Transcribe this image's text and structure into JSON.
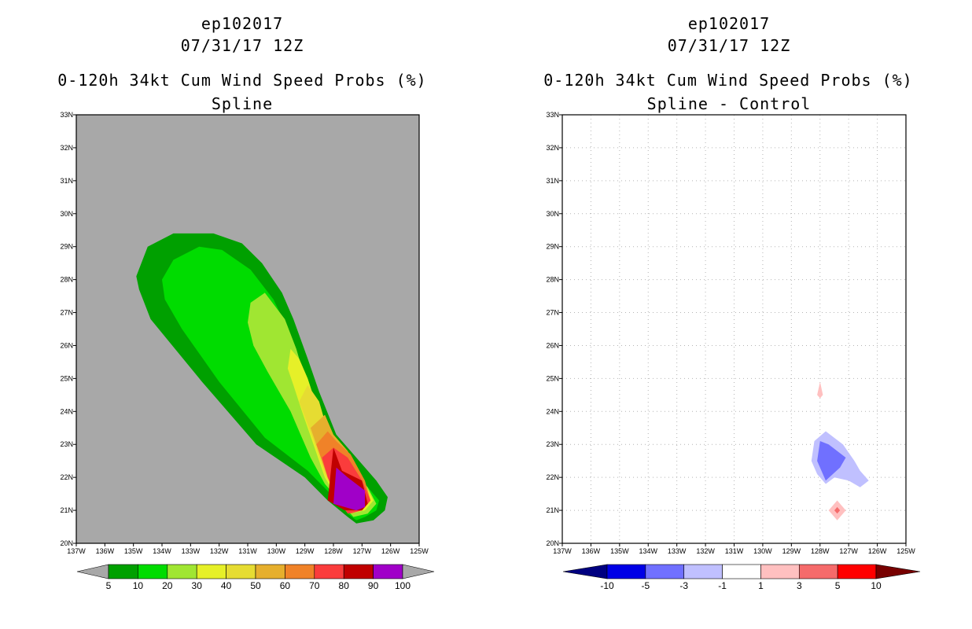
{
  "panels": [
    {
      "storm_id": "ep102017",
      "datetime": "07/31/17 12Z",
      "title": "0-120h 34kt Cum Wind Speed Probs (%)",
      "subtitle": "Spline"
    },
    {
      "storm_id": "ep102017",
      "datetime": "07/31/17 12Z",
      "title": "0-120h 34kt Cum Wind Speed Probs (%)",
      "subtitle": "Spline - Control"
    }
  ],
  "chart_data": [
    {
      "type": "heatmap",
      "title": "0-120h 34kt Cum Wind Speed Probs (%)",
      "subtitle": "Spline",
      "background_color": "#a8a8a8",
      "grid": false,
      "xlim": [
        -137,
        -125
      ],
      "ylim": [
        20,
        33
      ],
      "x_ticks": [
        -137,
        -136,
        -135,
        -134,
        -133,
        -132,
        -131,
        -130,
        -129,
        -128,
        -127,
        -126,
        -125
      ],
      "x_tick_labels": [
        "137W",
        "136W",
        "135W",
        "134W",
        "133W",
        "132W",
        "131W",
        "130W",
        "129W",
        "128W",
        "127W",
        "126W",
        "125W"
      ],
      "y_ticks": [
        20,
        21,
        22,
        23,
        24,
        25,
        26,
        27,
        28,
        29,
        30,
        31,
        32,
        33
      ],
      "y_tick_labels": [
        "20N",
        "21N",
        "22N",
        "23N",
        "24N",
        "25N",
        "26N",
        "27N",
        "28N",
        "29N",
        "30N",
        "31N",
        "32N",
        "33N"
      ],
      "contours": [
        {
          "level": 5,
          "color": "#00a000",
          "polygon": [
            [
              -130.7,
              23.0
            ],
            [
              -132.6,
              24.9
            ],
            [
              -134.4,
              26.8
            ],
            [
              -134.8,
              27.7
            ],
            [
              -134.9,
              28.1
            ],
            [
              -134.5,
              29.0
            ],
            [
              -133.6,
              29.4
            ],
            [
              -132.2,
              29.4
            ],
            [
              -131.2,
              29.1
            ],
            [
              -130.5,
              28.5
            ],
            [
              -129.8,
              27.6
            ],
            [
              -129.4,
              26.8
            ],
            [
              -128.9,
              25.6
            ],
            [
              -128.5,
              24.6
            ],
            [
              -127.9,
              23.3
            ],
            [
              -127.3,
              22.7
            ],
            [
              -126.5,
              21.9
            ],
            [
              -126.1,
              21.4
            ],
            [
              -126.2,
              21.0
            ],
            [
              -126.6,
              20.7
            ],
            [
              -127.2,
              20.6
            ],
            [
              -127.5,
              20.8
            ],
            [
              -128.2,
              21.3
            ],
            [
              -129.0,
              22.0
            ]
          ]
        },
        {
          "level": 10,
          "color": "#00dc00",
          "polygon": [
            [
              -130.4,
              23.2
            ],
            [
              -132.0,
              24.9
            ],
            [
              -133.3,
              26.5
            ],
            [
              -133.9,
              27.4
            ],
            [
              -134.0,
              28.0
            ],
            [
              -133.6,
              28.6
            ],
            [
              -132.7,
              29.0
            ],
            [
              -131.9,
              28.9
            ],
            [
              -130.9,
              28.3
            ],
            [
              -130.1,
              27.4
            ],
            [
              -129.6,
              26.5
            ],
            [
              -129.2,
              25.4
            ],
            [
              -128.8,
              24.4
            ],
            [
              -128.3,
              23.3
            ],
            [
              -127.7,
              22.6
            ],
            [
              -126.8,
              21.7
            ],
            [
              -126.4,
              21.3
            ],
            [
              -126.5,
              21.0
            ],
            [
              -126.9,
              20.8
            ],
            [
              -127.2,
              20.7
            ],
            [
              -127.5,
              20.9
            ],
            [
              -128.1,
              21.5
            ],
            [
              -128.9,
              22.2
            ]
          ]
        },
        {
          "level": 20,
          "color": "#a0e632",
          "polygon": [
            [
              -129.5,
              24.0
            ],
            [
              -130.3,
              25.2
            ],
            [
              -130.8,
              26.0
            ],
            [
              -131.0,
              26.7
            ],
            [
              -130.9,
              27.3
            ],
            [
              -130.4,
              27.6
            ],
            [
              -129.7,
              26.8
            ],
            [
              -129.3,
              25.9
            ],
            [
              -129.0,
              25.0
            ],
            [
              -128.7,
              24.1
            ],
            [
              -128.3,
              23.2
            ],
            [
              -127.6,
              22.5
            ],
            [
              -126.8,
              21.7
            ],
            [
              -126.5,
              21.2
            ],
            [
              -126.8,
              20.9
            ],
            [
              -127.3,
              20.8
            ],
            [
              -127.7,
              21.2
            ],
            [
              -128.3,
              21.8
            ],
            [
              -128.8,
              22.6
            ]
          ]
        },
        {
          "level": 30,
          "color": "#e6f028",
          "polygon": [
            [
              -129.1,
              24.0
            ],
            [
              -129.4,
              24.8
            ],
            [
              -129.6,
              25.3
            ],
            [
              -129.5,
              25.9
            ],
            [
              -129.2,
              25.6
            ],
            [
              -128.9,
              25.0
            ],
            [
              -128.6,
              24.2
            ],
            [
              -128.2,
              23.3
            ],
            [
              -127.6,
              22.6
            ],
            [
              -126.9,
              21.8
            ],
            [
              -126.6,
              21.3
            ],
            [
              -126.9,
              21.0
            ],
            [
              -127.4,
              20.9
            ],
            [
              -127.8,
              21.3
            ],
            [
              -128.3,
              22.0
            ],
            [
              -128.7,
              23.0
            ]
          ]
        },
        {
          "level": 40,
          "color": "#e6dc32",
          "polygon": [
            [
              -128.9,
              23.6
            ],
            [
              -129.2,
              24.3
            ],
            [
              -128.9,
              24.8
            ],
            [
              -128.5,
              24.3
            ],
            [
              -128.2,
              23.4
            ],
            [
              -127.6,
              22.7
            ],
            [
              -127.0,
              21.9
            ],
            [
              -126.7,
              21.3
            ],
            [
              -127.0,
              21.0
            ],
            [
              -127.4,
              20.9
            ],
            [
              -127.8,
              21.3
            ],
            [
              -128.3,
              22.1
            ],
            [
              -128.6,
              22.9
            ]
          ]
        },
        {
          "level": 50,
          "color": "#e6af2d",
          "polygon": [
            [
              -128.6,
              23.0
            ],
            [
              -128.8,
              23.5
            ],
            [
              -128.3,
              23.9
            ],
            [
              -128.0,
              23.3
            ],
            [
              -127.5,
              22.8
            ],
            [
              -127.0,
              21.9
            ],
            [
              -126.7,
              21.3
            ],
            [
              -127.0,
              21.0
            ],
            [
              -127.4,
              20.9
            ],
            [
              -127.8,
              21.4
            ],
            [
              -128.2,
              22.2
            ]
          ]
        },
        {
          "level": 60,
          "color": "#f08228",
          "polygon": [
            [
              -128.4,
              22.5
            ],
            [
              -128.6,
              23.0
            ],
            [
              -128.2,
              23.4
            ],
            [
              -127.9,
              23.1
            ],
            [
              -127.4,
              22.7
            ],
            [
              -126.9,
              21.9
            ],
            [
              -126.7,
              21.3
            ],
            [
              -127.0,
              21.0
            ],
            [
              -127.4,
              20.9
            ],
            [
              -127.8,
              21.4
            ],
            [
              -128.2,
              22.0
            ]
          ]
        },
        {
          "level": 70,
          "color": "#fa3c3c",
          "polygon": [
            [
              -128.2,
              22.0
            ],
            [
              -128.4,
              22.6
            ],
            [
              -128.0,
              22.9
            ],
            [
              -127.5,
              22.6
            ],
            [
              -127.0,
              21.9
            ],
            [
              -126.7,
              21.3
            ],
            [
              -127.0,
              21.0
            ],
            [
              -127.5,
              20.9
            ],
            [
              -127.9,
              21.4
            ]
          ]
        },
        {
          "level": 80,
          "color": "#c00000",
          "polygon": [
            [
              -128.2,
              21.3
            ],
            [
              -128.0,
              22.9
            ],
            [
              -127.7,
              22.2
            ],
            [
              -127.0,
              21.9
            ],
            [
              -126.8,
              21.2
            ],
            [
              -127.0,
              21.0
            ],
            [
              -127.6,
              21.0
            ]
          ]
        },
        {
          "level": 90,
          "color": "#a000c8",
          "polygon": [
            [
              -128.0,
              21.2
            ],
            [
              -127.9,
              22.3
            ],
            [
              -127.5,
              22.0
            ],
            [
              -126.9,
              21.6
            ],
            [
              -126.9,
              21.1
            ],
            [
              -127.2,
              21.0
            ]
          ]
        }
      ],
      "colorbar": {
        "colors": [
          "#00a000",
          "#00dc00",
          "#a0e632",
          "#e6f028",
          "#e6dc32",
          "#e6af2d",
          "#f08228",
          "#fa3c3c",
          "#c00000",
          "#a000c8"
        ],
        "under_color": "#a8a8a8",
        "over_color": "#a8a8a8",
        "labels": [
          "5",
          "10",
          "20",
          "30",
          "40",
          "50",
          "60",
          "70",
          "80",
          "90",
          "100"
        ]
      }
    },
    {
      "type": "heatmap",
      "title": "0-120h 34kt Cum Wind Speed Probs (%)",
      "subtitle": "Spline - Control",
      "background_color": "#ffffff",
      "grid": true,
      "xlim": [
        -137,
        -125
      ],
      "ylim": [
        20,
        33
      ],
      "x_ticks": [
        -137,
        -136,
        -135,
        -134,
        -133,
        -132,
        -131,
        -130,
        -129,
        -128,
        -127,
        -126,
        -125
      ],
      "x_tick_labels": [
        "137W",
        "136W",
        "135W",
        "134W",
        "133W",
        "132W",
        "131W",
        "130W",
        "129W",
        "128W",
        "127W",
        "126W",
        "125W"
      ],
      "y_ticks": [
        20,
        21,
        22,
        23,
        24,
        25,
        26,
        27,
        28,
        29,
        30,
        31,
        32,
        33
      ],
      "y_tick_labels": [
        "20N",
        "21N",
        "22N",
        "23N",
        "24N",
        "25N",
        "26N",
        "27N",
        "28N",
        "29N",
        "30N",
        "31N",
        "32N",
        "33N"
      ],
      "contours": [
        {
          "level": 1,
          "color": "#ffc0c0",
          "polygon": [
            [
              -128.1,
              24.5
            ],
            [
              -128.0,
              24.9
            ],
            [
              -127.9,
              24.5
            ],
            [
              -128.0,
              24.4
            ]
          ]
        },
        {
          "level": -3,
          "color": "#c0c0ff",
          "polygon": [
            [
              -128.3,
              22.5
            ],
            [
              -128.2,
              23.1
            ],
            [
              -127.8,
              23.4
            ],
            [
              -127.2,
              23.0
            ],
            [
              -126.8,
              22.5
            ],
            [
              -126.6,
              22.2
            ],
            [
              -126.3,
              21.9
            ],
            [
              -126.6,
              21.7
            ],
            [
              -127.0,
              21.9
            ],
            [
              -127.5,
              22.0
            ],
            [
              -127.8,
              21.8
            ],
            [
              -128.1,
              22.1
            ]
          ]
        },
        {
          "level": -5,
          "color": "#7070ff",
          "polygon": [
            [
              -128.1,
              22.5
            ],
            [
              -128.0,
              23.1
            ],
            [
              -127.7,
              23.0
            ],
            [
              -127.1,
              22.6
            ],
            [
              -127.3,
              22.3
            ],
            [
              -127.8,
              21.9
            ]
          ]
        },
        {
          "level": 1,
          "color": "#ffc0c0",
          "polygon": [
            [
              -127.7,
              21.0
            ],
            [
              -127.4,
              21.3
            ],
            [
              -127.1,
              21.0
            ],
            [
              -127.4,
              20.7
            ]
          ]
        },
        {
          "level": 3,
          "color": "#f56b6b",
          "polygon": [
            [
              -127.5,
              21.0
            ],
            [
              -127.4,
              21.1
            ],
            [
              -127.3,
              21.0
            ],
            [
              -127.4,
              20.9
            ]
          ]
        }
      ],
      "colorbar": {
        "colors": [
          "#0000e6",
          "#7070ff",
          "#c0c0ff",
          "#ffffff",
          "#ffc0c0",
          "#f56b6b",
          "#ff0000"
        ],
        "under_color": "#000080",
        "over_color": "#780000",
        "labels": [
          "-10",
          "-5",
          "-3",
          "-1",
          "1",
          "3",
          "5",
          "10"
        ]
      }
    }
  ]
}
